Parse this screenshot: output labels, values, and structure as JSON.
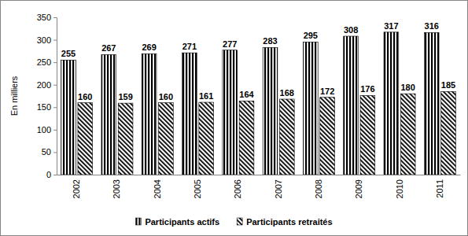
{
  "chart_data": {
    "type": "bar",
    "y_label": "En milliers",
    "categories": [
      "2002",
      "2003",
      "2004",
      "2005",
      "2006",
      "2007",
      "2008",
      "2009",
      "2010",
      "2011"
    ],
    "series": [
      {
        "name": "Participants actifs",
        "color": "#000000",
        "values": [
          255,
          267,
          269,
          271,
          277,
          283,
          295,
          308,
          317,
          316
        ]
      },
      {
        "name": "Participants retraités",
        "color": "#000000",
        "values": [
          160,
          159,
          160,
          161,
          164,
          168,
          172,
          176,
          180,
          185
        ]
      }
    ],
    "ylim": [
      0,
      350
    ],
    "yticks": [
      0,
      50,
      100,
      150,
      200,
      250,
      300,
      350
    ],
    "grid": false,
    "data_labels": true,
    "legend": "bottom"
  }
}
